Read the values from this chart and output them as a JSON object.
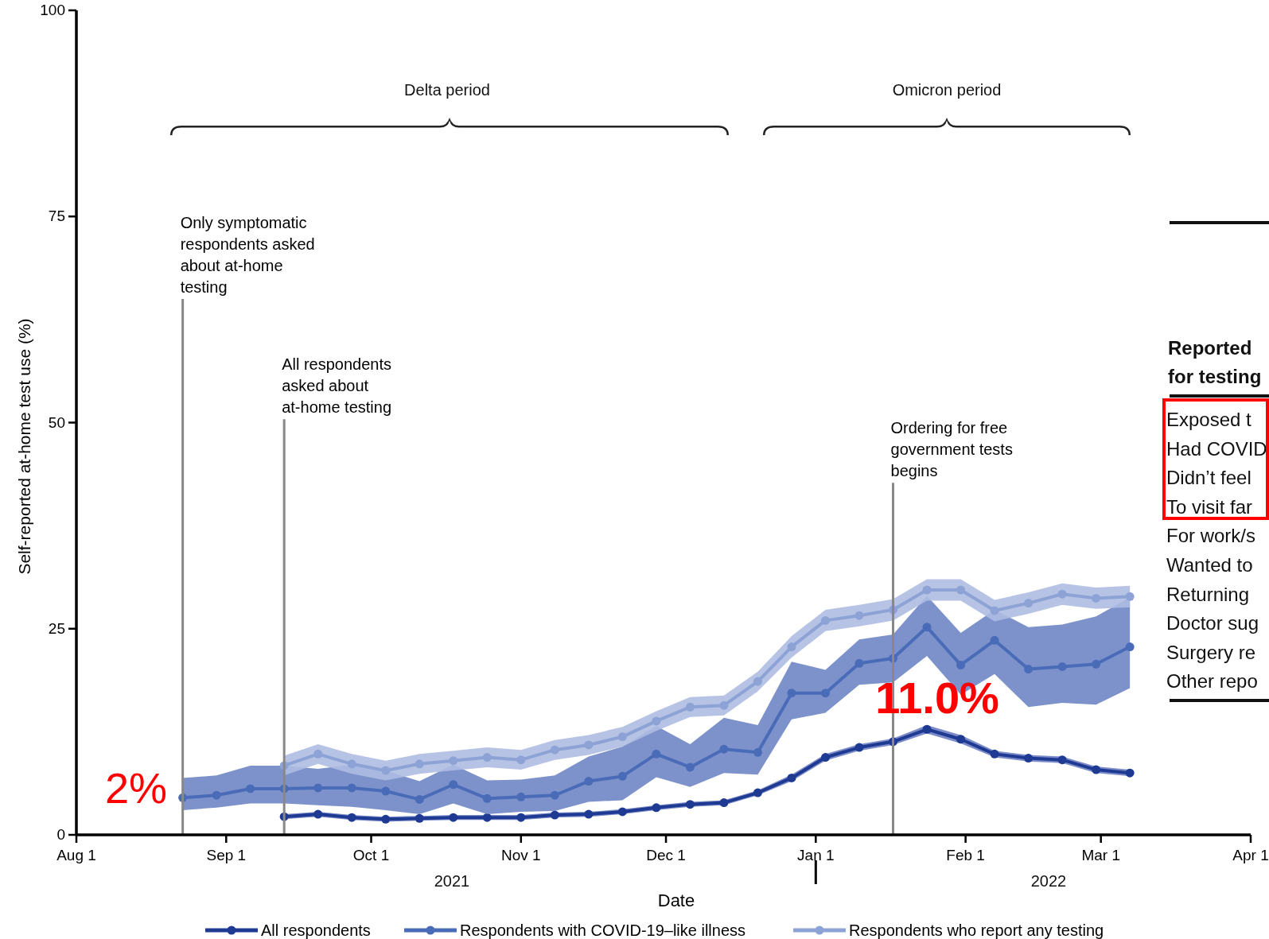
{
  "chart_data": {
    "type": "line",
    "xlabel": "Date",
    "ylabel": "Self-reported at-home test use (%)",
    "x": [
      "2021-08-23",
      "2021-08-30",
      "2021-09-06",
      "2021-09-13",
      "2021-09-20",
      "2021-09-27",
      "2021-10-04",
      "2021-10-11",
      "2021-10-18",
      "2021-10-25",
      "2021-11-01",
      "2021-11-08",
      "2021-11-15",
      "2021-11-22",
      "2021-11-29",
      "2021-12-06",
      "2021-12-13",
      "2021-12-20",
      "2021-12-27",
      "2022-01-03",
      "2022-01-10",
      "2022-01-17",
      "2022-01-24",
      "2022-01-31",
      "2022-02-07",
      "2022-02-14",
      "2022-02-21",
      "2022-02-28",
      "2022-03-07"
    ],
    "series": [
      {
        "name": "All respondents",
        "color": "#1f3a93",
        "values": [
          null,
          null,
          null,
          2.2,
          2.5,
          2.1,
          1.9,
          2.0,
          2.1,
          2.1,
          2.1,
          2.4,
          2.5,
          2.8,
          3.3,
          3.7,
          3.9,
          5.1,
          6.9,
          9.4,
          10.6,
          11.3,
          12.8,
          11.6,
          9.8,
          9.3,
          9.1,
          7.9,
          7.5
        ],
        "lower": [
          null,
          null,
          null,
          1.9,
          2.2,
          1.8,
          1.6,
          1.7,
          1.8,
          1.8,
          1.8,
          2.1,
          2.2,
          2.5,
          3.0,
          3.4,
          3.6,
          4.8,
          6.5,
          9.0,
          10.2,
          10.9,
          12.3,
          11.1,
          9.4,
          8.9,
          8.7,
          7.5,
          7.1
        ],
        "upper": [
          null,
          null,
          null,
          2.5,
          2.8,
          2.4,
          2.2,
          2.3,
          2.4,
          2.4,
          2.4,
          2.7,
          2.8,
          3.1,
          3.6,
          4.0,
          4.2,
          5.4,
          7.3,
          9.8,
          11.0,
          11.7,
          13.3,
          12.1,
          10.2,
          9.7,
          9.5,
          8.3,
          7.9
        ]
      },
      {
        "name": "Respondents with COVID-19–like illness",
        "color": "#4a6cb8",
        "values": [
          4.5,
          4.8,
          5.6,
          5.6,
          5.7,
          5.7,
          5.3,
          4.3,
          6.1,
          4.4,
          4.6,
          4.8,
          6.5,
          7.1,
          9.8,
          8.2,
          10.4,
          10.0,
          17.2,
          17.2,
          20.8,
          21.4,
          25.2,
          20.6,
          23.6,
          20.1,
          20.4,
          20.7,
          22.8
        ],
        "lower": [
          3.0,
          3.3,
          3.8,
          3.8,
          3.6,
          3.4,
          3.0,
          2.5,
          3.8,
          2.5,
          2.8,
          2.9,
          4.0,
          4.2,
          7.0,
          5.8,
          7.5,
          7.3,
          14.0,
          14.8,
          18.2,
          18.5,
          21.7,
          17.0,
          19.5,
          15.5,
          16.0,
          15.8,
          17.8
        ],
        "upper": [
          6.9,
          7.2,
          8.4,
          8.4,
          8.0,
          8.5,
          7.8,
          6.5,
          8.5,
          6.6,
          6.7,
          7.2,
          9.5,
          10.7,
          13.2,
          11.0,
          14.2,
          13.3,
          21.0,
          20.0,
          23.7,
          24.3,
          29.0,
          24.5,
          27.3,
          25.2,
          25.5,
          26.5,
          28.8
        ]
      },
      {
        "name": "Respondents who report any testing",
        "color": "#8da3d6",
        "values": [
          null,
          null,
          null,
          8.4,
          9.8,
          8.6,
          7.8,
          8.6,
          9.0,
          9.4,
          9.1,
          10.3,
          10.9,
          11.9,
          13.8,
          15.5,
          15.7,
          18.6,
          22.8,
          26.0,
          26.6,
          27.3,
          29.7,
          29.7,
          27.2,
          28.1,
          29.2,
          28.7,
          28.9
        ],
        "lower": [
          null,
          null,
          null,
          7.2,
          8.6,
          7.4,
          6.6,
          7.4,
          7.8,
          8.2,
          7.9,
          9.1,
          9.7,
          10.7,
          12.6,
          14.3,
          14.5,
          17.4,
          21.5,
          24.7,
          25.3,
          26.0,
          28.4,
          28.4,
          25.9,
          26.8,
          27.9,
          27.4,
          27.6
        ],
        "upper": [
          null,
          null,
          null,
          9.6,
          11.0,
          9.8,
          9.0,
          9.8,
          10.2,
          10.6,
          10.3,
          11.5,
          12.1,
          13.1,
          15.0,
          16.7,
          16.9,
          19.8,
          24.1,
          27.3,
          27.9,
          28.6,
          31.0,
          31.0,
          28.5,
          29.4,
          30.5,
          30.0,
          30.2
        ]
      }
    ],
    "xlim": [
      "2021-08-01",
      "2022-04-01"
    ],
    "xticks": [
      {
        "value": "2021-08-01",
        "label": "Aug 1"
      },
      {
        "value": "2021-09-01",
        "label": "Sep 1"
      },
      {
        "value": "2021-10-01",
        "label": "Oct 1"
      },
      {
        "value": "2021-11-01",
        "label": "Nov 1"
      },
      {
        "value": "2021-12-01",
        "label": "Dec 1"
      },
      {
        "value": "2022-01-01",
        "label": "Jan 1"
      },
      {
        "value": "2022-02-01",
        "label": "Feb 1"
      },
      {
        "value": "2022-03-01",
        "label": "Mar 1"
      },
      {
        "value": "2022-04-01",
        "label": "Apr 1"
      }
    ],
    "ylim": [
      0,
      100
    ],
    "yticks": [
      0,
      25,
      50,
      75,
      100
    ],
    "marker": "circle",
    "line_style": "solid",
    "legend": "bottom",
    "grid": false,
    "ref_lines": [
      {
        "axis": "x",
        "value": "2021-08-23",
        "label": "Only symptomatic\nrespondents asked\nabout at-home\ntesting",
        "color": "#888888"
      },
      {
        "axis": "x",
        "value": "2021-09-13",
        "label": "All respondents\nasked about\nat-home testing",
        "color": "#888888"
      },
      {
        "axis": "x",
        "value": "2022-01-17",
        "label": "Ordering for free\ngovernment tests\nbegins",
        "color": "#888888"
      }
    ],
    "annotations": [
      "Delta period",
      "Omicron period",
      "2%",
      "11.0%",
      "2021",
      "2022",
      "Reported\nfor testing",
      "Exposed t",
      "Had COVID",
      "Didn’t feel",
      "To visit far",
      "For work/s",
      "Wanted to",
      "Returning",
      "Doctor sug",
      "Surgery re",
      "Other repo"
    ]
  }
}
